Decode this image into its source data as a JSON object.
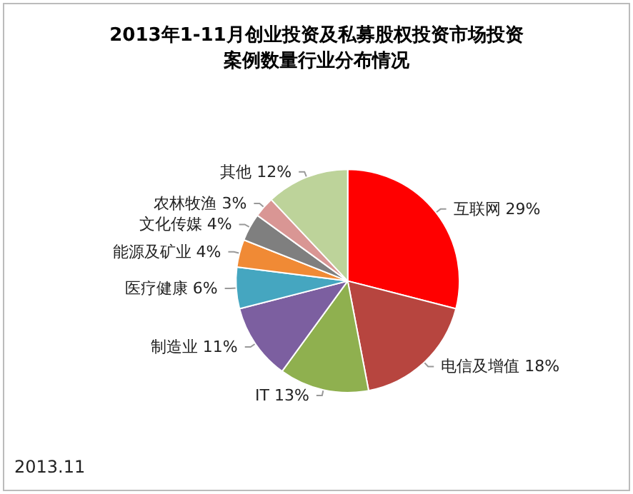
{
  "chart_data": {
    "type": "pie",
    "title": "2013年1-11月创业投资及私募股权投资市场投资案例数量行业分布情况",
    "categories": [
      "互联网",
      "电信及增值",
      "IT",
      "制造业",
      "医疗健康",
      "能源及矿业",
      "文化传媒",
      "农林牧渔",
      "其他"
    ],
    "values": [
      29,
      18,
      13,
      11,
      6,
      4,
      4,
      3,
      12
    ],
    "value_labels": [
      "29%",
      "18%",
      "13%",
      "11%",
      "6%",
      "4%",
      "4%",
      "3%",
      "12%"
    ],
    "colors": [
      "#ff0000",
      "#b7453f",
      "#8fb04f",
      "#7c5fa0",
      "#45a6c0",
      "#f08a35",
      "#7f7f7f",
      "#d99694",
      "#bdd39a"
    ],
    "annotations": [
      "2013.11"
    ],
    "legend": false
  }
}
